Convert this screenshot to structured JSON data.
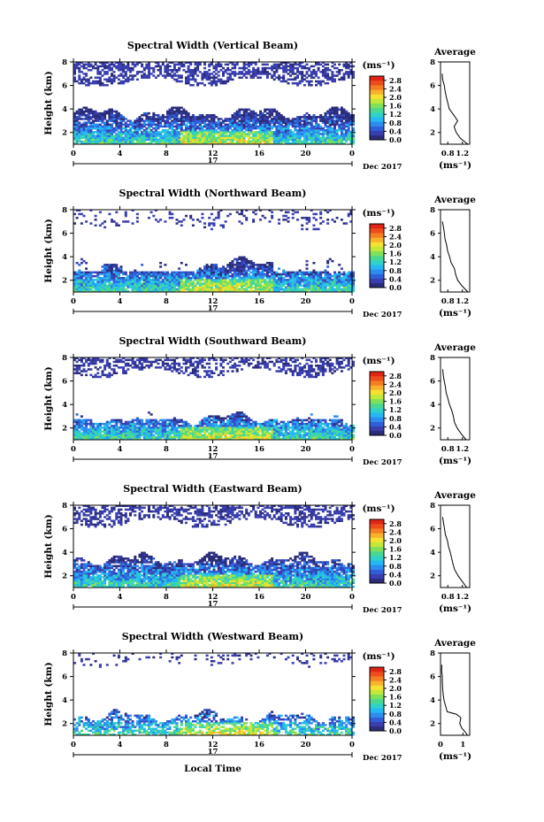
{
  "figure": {
    "xlabel_bottom": "Local Time",
    "date_label": "Dec 2017",
    "day_label": "17",
    "colorbar_unit": "(ms⁻¹)",
    "avg_title": "Average",
    "avg_xlabel": "(ms⁻¹)",
    "ylabel": "Height (km)"
  },
  "colorbar": {
    "ticks": [
      "0.0",
      "0.4",
      "0.8",
      "1.2",
      "1.6",
      "2.0",
      "2.4",
      "2.8"
    ],
    "min": 0.0,
    "max": 3.0,
    "colors": [
      "#2b2d7a",
      "#3a3fb0",
      "#2f5fd8",
      "#2b8df0",
      "#25b8f2",
      "#30d2c8",
      "#48d890",
      "#7fe05a",
      "#c2e83a",
      "#f4e132",
      "#f7b22a",
      "#f47f23",
      "#ef4c1c",
      "#e02515"
    ]
  },
  "chart_data": [
    {
      "type": "heatmap",
      "title": "Spectral Width (Vertical Beam)",
      "xlabel": "",
      "ylabel": "Height (km)",
      "xlim": [
        0,
        24
      ],
      "ylim": [
        1,
        8
      ],
      "xticks": [
        "0",
        "4",
        "8",
        "12",
        "16",
        "20",
        "0"
      ],
      "yticks": [
        "2",
        "4",
        "6",
        "8"
      ],
      "low_layer_top_km": 3.6,
      "upper_layer_km": [
        6.2,
        8
      ],
      "average": {
        "title": "Average",
        "xlabel": "(ms⁻¹)",
        "xticks": [
          "0.8",
          "1.2"
        ],
        "xlim": [
          0.6,
          1.4
        ],
        "yticks": [
          "2",
          "4",
          "6",
          "8"
        ],
        "height_km": [
          1.0,
          1.5,
          2.0,
          2.5,
          3.0,
          3.5,
          4.0,
          4.5,
          5.0,
          5.5,
          6.0,
          6.5,
          7.0
        ],
        "value": [
          1.35,
          1.15,
          1.02,
          0.98,
          1.08,
          0.95,
          0.85,
          0.8,
          0.76,
          0.72,
          0.7,
          0.66,
          0.65
        ]
      }
    },
    {
      "type": "heatmap",
      "title": "Spectral Width (Northward Beam)",
      "xlabel": "",
      "ylabel": "Height (km)",
      "xlim": [
        0,
        24
      ],
      "ylim": [
        1,
        8
      ],
      "xticks": [
        "0",
        "4",
        "8",
        "12",
        "16",
        "20",
        "0"
      ],
      "yticks": [
        "2",
        "4",
        "6",
        "8"
      ],
      "low_layer_top_km": 3.4,
      "upper_layer_km": [
        6.5,
        8
      ],
      "average": {
        "title": "Average",
        "xlabel": "(ms⁻¹)",
        "xticks": [
          "0.8",
          "1.2"
        ],
        "xlim": [
          0.6,
          1.4
        ],
        "yticks": [
          "2",
          "4",
          "6",
          "8"
        ],
        "height_km": [
          1.0,
          1.5,
          2.0,
          2.5,
          3.0,
          3.5,
          4.0,
          4.5,
          5.0,
          5.5,
          6.0,
          6.5,
          7.0
        ],
        "value": [
          1.35,
          1.2,
          1.08,
          1.02,
          0.98,
          0.9,
          0.85,
          0.8,
          0.76,
          0.72,
          0.7,
          0.68,
          0.66
        ]
      }
    },
    {
      "type": "heatmap",
      "title": "Spectral Width (Southward Beam)",
      "xlabel": "",
      "ylabel": "Height (km)",
      "xlim": [
        0,
        24
      ],
      "ylim": [
        1,
        8
      ],
      "xticks": [
        "0",
        "4",
        "8",
        "12",
        "16",
        "20",
        "0"
      ],
      "yticks": [
        "2",
        "4",
        "6",
        "8"
      ],
      "low_layer_top_km": 2.8,
      "upper_layer_km": [
        6.6,
        8
      ],
      "average": {
        "title": "Average",
        "xlabel": "(ms⁻¹)",
        "xticks": [
          "0.8",
          "1.2"
        ],
        "xlim": [
          0.6,
          1.4
        ],
        "yticks": [
          "2",
          "4",
          "6",
          "8"
        ],
        "height_km": [
          1.0,
          1.5,
          2.0,
          2.5,
          3.0,
          3.5,
          4.0,
          4.5,
          5.0,
          5.5,
          6.0,
          6.5,
          7.0
        ],
        "value": [
          1.3,
          1.18,
          1.05,
          0.98,
          0.95,
          0.9,
          0.85,
          0.8,
          0.76,
          0.73,
          0.7,
          0.68,
          0.66
        ]
      }
    },
    {
      "type": "heatmap",
      "title": "Spectral Width (Eastward Beam)",
      "xlabel": "",
      "ylabel": "Height (km)",
      "xlim": [
        0,
        24
      ],
      "ylim": [
        1,
        8
      ],
      "xticks": [
        "0",
        "4",
        "8",
        "12",
        "16",
        "20",
        "0"
      ],
      "yticks": [
        "2",
        "4",
        "6",
        "8"
      ],
      "low_layer_top_km": 3.4,
      "upper_layer_km": [
        6.4,
        8
      ],
      "average": {
        "title": "Average",
        "xlabel": "(ms⁻¹)",
        "xticks": [
          "0.8",
          "1.2"
        ],
        "xlim": [
          0.6,
          1.4
        ],
        "yticks": [
          "2",
          "4",
          "6",
          "8"
        ],
        "height_km": [
          1.0,
          1.5,
          2.0,
          2.5,
          3.0,
          3.5,
          4.0,
          4.5,
          5.0,
          5.5,
          6.0,
          6.5,
          7.0
        ],
        "value": [
          1.32,
          1.2,
          1.08,
          1.0,
          0.95,
          0.9,
          0.86,
          0.82,
          0.78,
          0.74,
          0.71,
          0.68,
          0.66
        ]
      }
    },
    {
      "type": "heatmap",
      "title": "Spectral Width (Westward Beam)",
      "xlabel": "Local Time",
      "ylabel": "Height (km)",
      "xlim": [
        0,
        24
      ],
      "ylim": [
        1,
        8
      ],
      "xticks": [
        "0",
        "4",
        "8",
        "12",
        "16",
        "20",
        "0"
      ],
      "yticks": [
        "2",
        "4",
        "6",
        "8"
      ],
      "low_layer_top_km": 2.6,
      "upper_layer_km": [
        7.0,
        8
      ],
      "average": {
        "title": "Average",
        "xlabel": "(ms⁻¹)",
        "xticks": [
          "0",
          "1"
        ],
        "xlim": [
          0,
          1.3
        ],
        "yticks": [
          "2",
          "4",
          "6",
          "8"
        ],
        "height_km": [
          1.0,
          1.3,
          1.6,
          2.0,
          2.5,
          2.8,
          3.0,
          3.3,
          3.6,
          4.0,
          4.5,
          5.0,
          5.5,
          6.0,
          6.5,
          7.0
        ],
        "value": [
          1.2,
          1.1,
          0.95,
          0.85,
          0.9,
          0.7,
          0.3,
          0.25,
          0.2,
          0.15,
          0.12,
          0.1,
          0.08,
          0.07,
          0.06,
          0.05
        ]
      }
    }
  ]
}
